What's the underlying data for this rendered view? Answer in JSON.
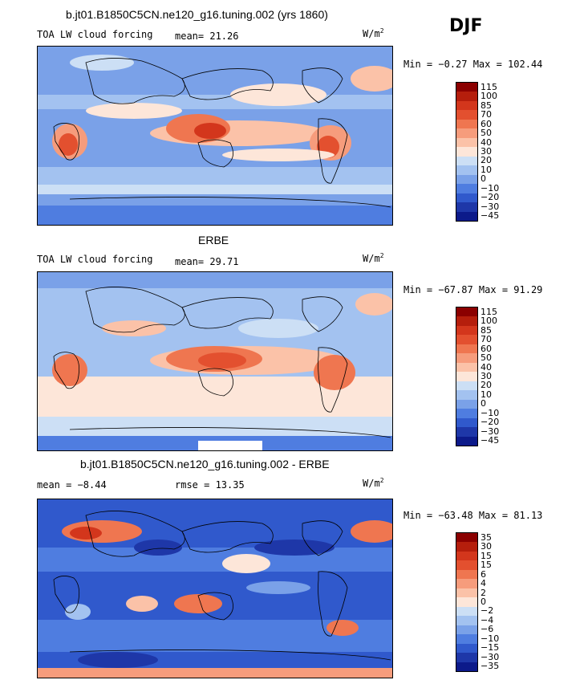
{
  "season": "DJF",
  "units_base": "W/m",
  "units_exp": "2",
  "panels": [
    {
      "id": "model",
      "title": "b.jt01.B1850C5CN.ne120_g16.tuning.002 (yrs 1860)",
      "variable": "TOA LW cloud forcing",
      "stat1": "mean=  21.26",
      "stat2": "",
      "minmax": "Min =  −0.27 Max = 102.44"
    },
    {
      "id": "obs",
      "title": "ERBE",
      "variable": "TOA LW cloud forcing",
      "stat1": "mean=  29.71",
      "stat2": "",
      "minmax": "Min = −67.87 Max =  91.29"
    },
    {
      "id": "diff",
      "title": "b.jt01.B1850C5CN.ne120_g16.tuning.002 - ERBE",
      "variable": "",
      "stat1": "mean =  −8.44",
      "stat2": "rmse =  13.35",
      "minmax": "Min = −63.48 Max =  81.13"
    }
  ],
  "chart_data": [
    {
      "type": "heatmap",
      "title": "b.jt01.B1850C5CN.ne120_g16.tuning.002 (yrs 1860)",
      "subtitle": "TOA LW cloud forcing",
      "units": "W/m^2",
      "mean": 21.26,
      "min": -0.27,
      "max": 102.44,
      "colorbar_levels": [
        "115",
        "100",
        "85",
        "70",
        "60",
        "50",
        "40",
        "30",
        "20",
        "10",
        "0",
        "−10",
        "−20",
        "−30",
        "−45"
      ]
    },
    {
      "type": "heatmap",
      "title": "ERBE",
      "subtitle": "TOA LW cloud forcing",
      "units": "W/m^2",
      "mean": 29.71,
      "min": -67.87,
      "max": 91.29,
      "colorbar_levels": [
        "115",
        "100",
        "85",
        "70",
        "60",
        "50",
        "40",
        "30",
        "20",
        "10",
        "0",
        "−10",
        "−20",
        "−30",
        "−45"
      ]
    },
    {
      "type": "heatmap",
      "title": "b.jt01.B1850C5CN.ne120_g16.tuning.002 - ERBE",
      "units": "W/m^2",
      "mean": -8.44,
      "rmse": 13.35,
      "min": -63.48,
      "max": 81.13,
      "colorbar_levels": [
        "35",
        "30",
        "15",
        "15",
        "6",
        "4",
        "2",
        "0",
        "−2",
        "−4",
        "−6",
        "−10",
        "−15",
        "−30",
        "−35"
      ]
    }
  ],
  "colors": {
    "full": [
      "#8b0000",
      "#b51e0c",
      "#d3361c",
      "#e3502f",
      "#ef7650",
      "#f69c7c",
      "#fbc2a8",
      "#fde6d9",
      "#ccdff5",
      "#a3c2f0",
      "#7aa1e8",
      "#4f7de0",
      "#3059cc",
      "#1e37a8",
      "#0c1a8a"
    ],
    "diff": [
      "#8b0000",
      "#b51e0c",
      "#d3361c",
      "#e3502f",
      "#ef7650",
      "#f69c7c",
      "#fbc2a8",
      "#fde6d9",
      "#ccdff5",
      "#a3c2f0",
      "#7aa1e8",
      "#4f7de0",
      "#3059cc",
      "#1e37a8",
      "#0c1a8a"
    ]
  }
}
